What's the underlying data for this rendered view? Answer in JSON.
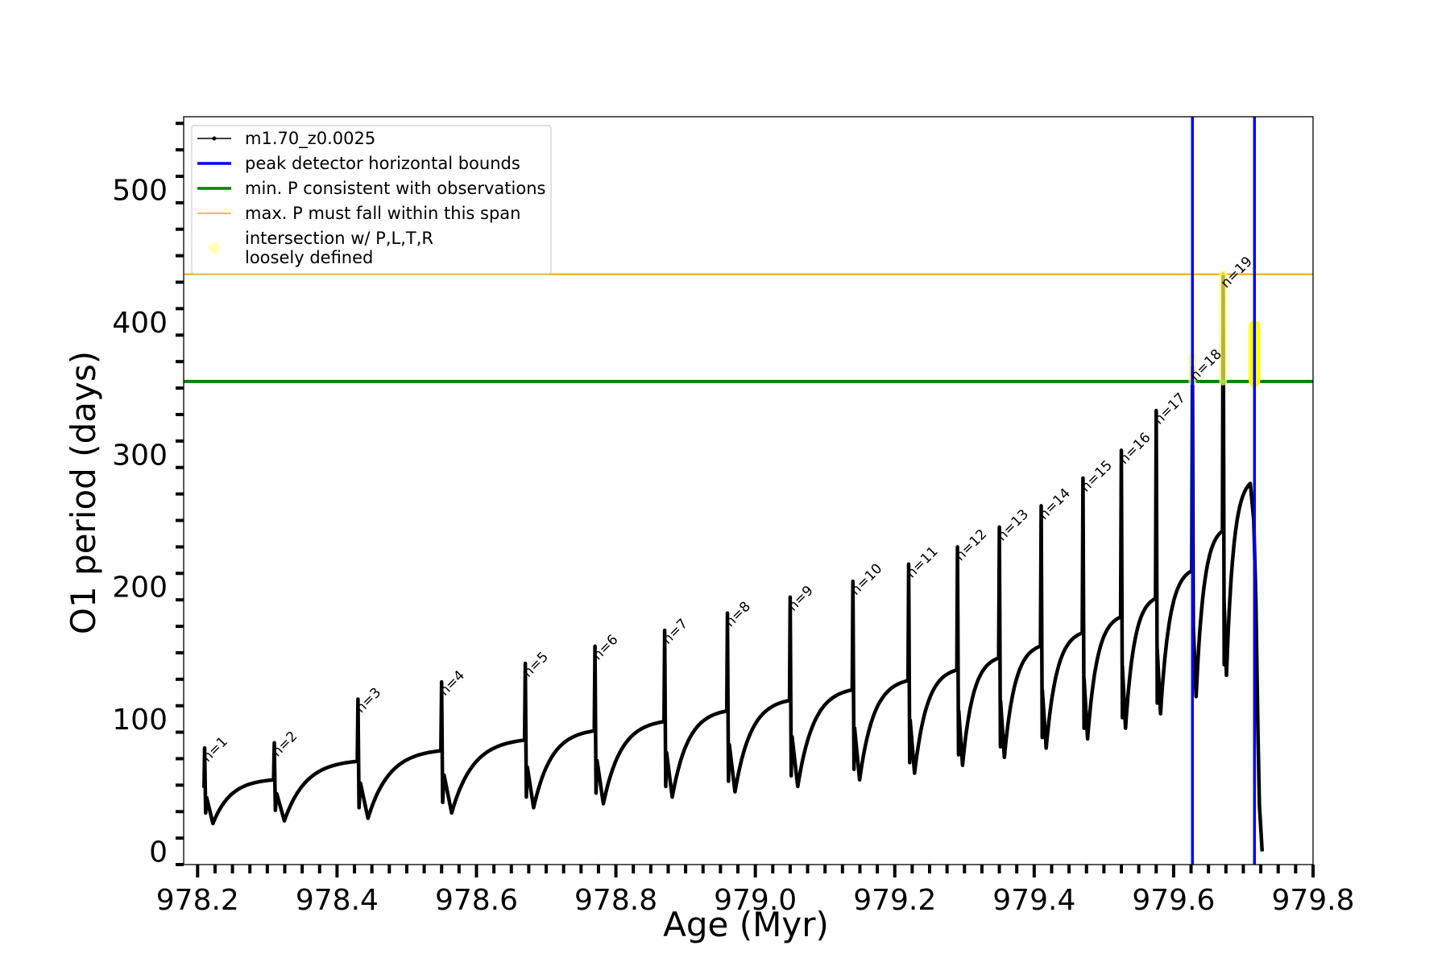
{
  "chart_data": {
    "type": "line",
    "xlabel": "Age (Myr)",
    "ylabel": "O1 period (days)",
    "xlim": [
      978.18,
      979.8
    ],
    "ylim": [
      -10,
      555
    ],
    "xticks": [
      978.2,
      978.4,
      978.6,
      978.8,
      979.0,
      979.2,
      979.4,
      979.6,
      979.8
    ],
    "xtick_labels": [
      "978.2",
      "978.4",
      "978.6",
      "978.8",
      "979.0",
      "979.2",
      "979.4",
      "979.6",
      "979.8"
    ],
    "yticks": [
      0,
      100,
      200,
      300,
      400,
      500
    ],
    "ytick_labels": [
      "0",
      "100",
      "200",
      "300",
      "400",
      "500"
    ],
    "grid": false,
    "legend_position": "top-left",
    "legend": [
      {
        "label": "m1.70_z0.0025",
        "color": "#000000",
        "style": "line-with-points"
      },
      {
        "label": "peak detector horizontal bounds",
        "color": "#0000ff",
        "style": "line"
      },
      {
        "label": "min. P consistent with observations",
        "color": "#008000",
        "style": "line"
      },
      {
        "label": "max. P must fall within this span",
        "color": "#ffa500",
        "style": "thin-line"
      },
      {
        "label": "intersection w/ P,L,T,R",
        "label2": "loosely defined",
        "color": "#ffff66",
        "style": "marker"
      }
    ],
    "hlines": [
      {
        "name": "min. P consistent with observations",
        "y": 355,
        "color": "#008000"
      },
      {
        "name": "max. P must fall within this span",
        "y": 436,
        "color": "#ffa500"
      }
    ],
    "vlines": [
      {
        "name": "peak detector horizontal bounds",
        "x": 979.627,
        "color": "#0000ff"
      },
      {
        "name": "peak detector horizontal bounds",
        "x": 979.716,
        "color": "#0000ff"
      }
    ],
    "highlights": [
      {
        "x": 979.627,
        "y_range": [
          355,
          373
        ],
        "color": "#ffff66"
      },
      {
        "x": 979.671,
        "y_range": [
          355,
          436
        ],
        "color": "#ffff66"
      },
      {
        "x": 979.716,
        "y_range": [
          355,
          397
        ],
        "color": "#ffff00"
      }
    ],
    "pulses": [
      {
        "label": "n=1",
        "x": 978.21,
        "peak": 78,
        "dip": 21,
        "plateau": 54
      },
      {
        "label": "n=2",
        "x": 978.31,
        "peak": 82,
        "dip": 23,
        "plateau": 68
      },
      {
        "label": "n=3",
        "x": 978.43,
        "peak": 115,
        "dip": 25,
        "plateau": 76
      },
      {
        "label": "n=4",
        "x": 978.55,
        "peak": 128,
        "dip": 29,
        "plateau": 84
      },
      {
        "label": "n=5",
        "x": 978.67,
        "peak": 142,
        "dip": 33,
        "plateau": 91
      },
      {
        "label": "n=6",
        "x": 978.77,
        "peak": 155,
        "dip": 36,
        "plateau": 98
      },
      {
        "label": "n=7",
        "x": 978.87,
        "peak": 167,
        "dip": 41,
        "plateau": 106
      },
      {
        "label": "n=8",
        "x": 978.96,
        "peak": 180,
        "dip": 45,
        "plateau": 114
      },
      {
        "label": "n=9",
        "x": 979.05,
        "peak": 192,
        "dip": 49,
        "plateau": 122
      },
      {
        "label": "n=10",
        "x": 979.14,
        "peak": 204,
        "dip": 54,
        "plateau": 129
      },
      {
        "label": "n=11",
        "x": 979.22,
        "peak": 217,
        "dip": 59,
        "plateau": 137
      },
      {
        "label": "n=12",
        "x": 979.29,
        "peak": 230,
        "dip": 65,
        "plateau": 146
      },
      {
        "label": "n=13",
        "x": 979.35,
        "peak": 245,
        "dip": 71,
        "plateau": 155
      },
      {
        "label": "n=14",
        "x": 979.41,
        "peak": 261,
        "dip": 78,
        "plateau": 165
      },
      {
        "label": "n=15",
        "x": 979.47,
        "peak": 282,
        "dip": 85,
        "plateau": 177
      },
      {
        "label": "n=16",
        "x": 979.525,
        "peak": 303,
        "dip": 93,
        "plateau": 191
      },
      {
        "label": "n=17",
        "x": 979.575,
        "peak": 333,
        "dip": 104,
        "plateau": 212
      },
      {
        "label": "n=18",
        "x": 979.627,
        "peak": 366,
        "dip": 117,
        "plateau": 242
      },
      {
        "label": "n=19",
        "x": 979.671,
        "peak": 436,
        "dip": 133,
        "plateau": 278
      }
    ],
    "final_descent": {
      "x_start": 979.711,
      "x_end": 979.727,
      "y_end": 0
    }
  }
}
